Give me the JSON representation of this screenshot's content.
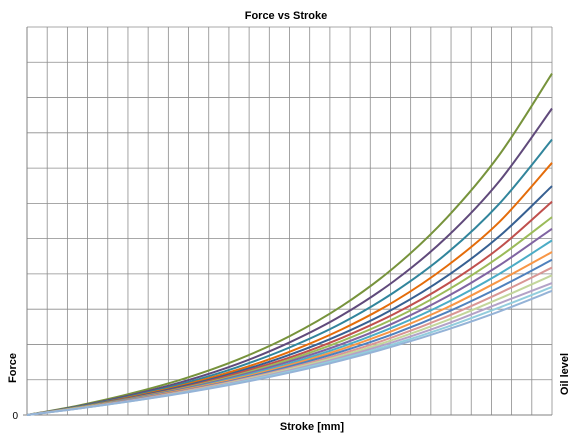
{
  "chart_data": {
    "type": "line",
    "title": "Force vs Stroke",
    "xlabel": "Stroke [mm]",
    "ylabel": "Force",
    "y2label": "Oil level",
    "yticks": [
      "0"
    ],
    "xlim": [
      0,
      1
    ],
    "ylim": [
      0,
      1
    ],
    "grid": true,
    "x_gridlines": 26,
    "y_gridlines": 11,
    "legend": "none",
    "shape": "exponential",
    "x": [
      0,
      0.1,
      0.2,
      0.3,
      0.4,
      0.5,
      0.6,
      0.7,
      0.8,
      0.9,
      1.0
    ],
    "series": [
      {
        "color": "#77933C",
        "values": [
          0,
          0.025,
          0.056,
          0.094,
          0.142,
          0.203,
          0.281,
          0.381,
          0.509,
          0.671,
          0.88
        ]
      },
      {
        "color": "#604A7B",
        "values": [
          0,
          0.023,
          0.052,
          0.087,
          0.131,
          0.187,
          0.257,
          0.346,
          0.459,
          0.603,
          0.79
        ]
      },
      {
        "color": "#31859C",
        "values": [
          0,
          0.022,
          0.049,
          0.082,
          0.123,
          0.174,
          0.237,
          0.317,
          0.417,
          0.545,
          0.71
        ]
      },
      {
        "color": "#E46C0A",
        "values": [
          0,
          0.021,
          0.047,
          0.078,
          0.116,
          0.163,
          0.221,
          0.293,
          0.384,
          0.498,
          0.65
        ]
      },
      {
        "color": "#376092",
        "values": [
          0,
          0.021,
          0.045,
          0.075,
          0.111,
          0.155,
          0.209,
          0.275,
          0.358,
          0.461,
          0.59
        ]
      },
      {
        "color": "#C0504D",
        "values": [
          0,
          0.02,
          0.044,
          0.072,
          0.107,
          0.148,
          0.199,
          0.261,
          0.337,
          0.431,
          0.55
        ]
      },
      {
        "color": "#9BBB59",
        "values": [
          0,
          0.02,
          0.043,
          0.07,
          0.103,
          0.143,
          0.191,
          0.249,
          0.321,
          0.408,
          0.51
        ]
      },
      {
        "color": "#8064A2",
        "values": [
          0,
          0.019,
          0.042,
          0.068,
          0.1,
          0.138,
          0.183,
          0.238,
          0.305,
          0.386,
          0.48
        ]
      },
      {
        "color": "#4BACC6",
        "values": [
          0,
          0.019,
          0.041,
          0.066,
          0.097,
          0.133,
          0.176,
          0.228,
          0.29,
          0.364,
          0.45
        ]
      },
      {
        "color": "#F79646",
        "values": [
          0,
          0.019,
          0.04,
          0.065,
          0.094,
          0.129,
          0.17,
          0.219,
          0.277,
          0.346,
          0.42
        ]
      },
      {
        "color": "#4F81BD",
        "values": [
          0,
          0.018,
          0.039,
          0.063,
          0.091,
          0.125,
          0.164,
          0.21,
          0.265,
          0.329,
          0.4
        ]
      },
      {
        "color": "#D99694",
        "values": [
          0,
          0.018,
          0.038,
          0.062,
          0.089,
          0.121,
          0.158,
          0.202,
          0.254,
          0.314,
          0.38
        ]
      },
      {
        "color": "#C3D69B",
        "values": [
          0,
          0.018,
          0.037,
          0.06,
          0.087,
          0.118,
          0.153,
          0.195,
          0.244,
          0.3,
          0.36
        ]
      },
      {
        "color": "#B3A2C7",
        "values": [
          0,
          0.017,
          0.037,
          0.059,
          0.085,
          0.115,
          0.149,
          0.189,
          0.235,
          0.288,
          0.34
        ]
      },
      {
        "color": "#93CDDD",
        "values": [
          0,
          0.017,
          0.036,
          0.058,
          0.083,
          0.112,
          0.145,
          0.183,
          0.227,
          0.277,
          0.33
        ]
      },
      {
        "color": "#95B3D7",
        "values": [
          0,
          0.017,
          0.036,
          0.057,
          0.081,
          0.109,
          0.141,
          0.178,
          0.22,
          0.267,
          0.32
        ]
      }
    ]
  }
}
